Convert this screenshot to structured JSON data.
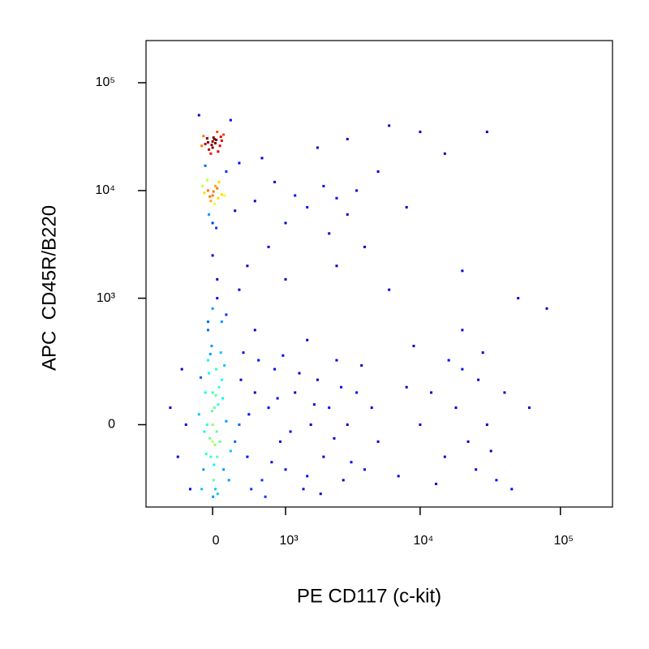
{
  "chart_data": {
    "type": "scatter",
    "xlabel": "PE CD117 (c-kit)",
    "ylabel": "APC  CD45R/B220",
    "xscale": "biexponential",
    "yscale": "biexponential",
    "xlim": [
      -880,
      235000
    ],
    "ylim": [
      -380,
      246000
    ],
    "xticks": [
      0,
      {
        "value": 1000,
        "label": "10³"
      },
      {
        "value": 10000,
        "label": "10⁴"
      },
      {
        "value": 100000,
        "label": "10⁵"
      }
    ],
    "yticks": [
      0,
      {
        "value": 1000,
        "label": "10³"
      },
      {
        "value": 10000,
        "label": "10⁴"
      },
      {
        "value": 100000,
        "label": "10⁵"
      }
    ],
    "colormap": "jet",
    "x": [
      -50,
      20,
      80,
      -100,
      0,
      50,
      -20,
      100,
      -80,
      30,
      10,
      -40,
      60,
      120,
      -120,
      0,
      40,
      -60,
      90,
      -10,
      0,
      -50,
      60,
      30,
      -90,
      100,
      -20,
      20,
      70,
      -60,
      10,
      -30,
      50,
      130,
      -110,
      -150,
      200,
      150,
      -80,
      0,
      40,
      -40,
      250,
      300,
      500,
      800,
      1200,
      1500,
      2000,
      2500,
      3000,
      3500,
      1000,
      700,
      2200,
      4000,
      600,
      1800,
      3000,
      6000,
      10000,
      15000,
      30000,
      8000,
      5000,
      400,
      1000,
      2500,
      6000,
      20000,
      50000,
      80000,
      300,
      150,
      50,
      0,
      -50,
      0,
      20,
      -30,
      50,
      -80,
      100,
      10,
      -100,
      40,
      -50,
      80,
      0,
      -20,
      60,
      -150,
      120,
      30,
      -60,
      90,
      -10,
      150,
      -120,
      200,
      5,
      70,
      -40,
      25,
      -90,
      110,
      -5,
      15,
      45,
      -70,
      130,
      -25,
      180,
      0,
      35,
      -130,
      55,
      300,
      400,
      500,
      600,
      700,
      800,
      900,
      1000,
      1200,
      1400,
      1600,
      1800,
      2000,
      2200,
      2500,
      2800,
      3000,
      3500,
      4000,
      4500,
      5000,
      350,
      450,
      550,
      650,
      750,
      850,
      950,
      1100,
      1300,
      1500,
      1700,
      1900,
      2400,
      2700,
      3200,
      3800,
      250,
      320,
      420,
      10000,
      12000,
      15000,
      18000,
      20000,
      25000,
      28000,
      30000,
      35000,
      40000,
      45000,
      60000,
      22000,
      16000,
      13000,
      26000,
      32000,
      8000,
      7000,
      9000,
      -300,
      -400,
      -350,
      -250,
      -500,
      0,
      -50,
      100,
      50,
      500,
      1500,
      20000
    ],
    "values": [
      28000,
      30000,
      26000,
      32000,
      25000,
      35000,
      22000,
      29000,
      27000,
      27500,
      31000,
      24000,
      23000,
      33000,
      26000,
      28500,
      29500,
      30500,
      31500,
      26500,
      9000,
      10000,
      8500,
      11000,
      9500,
      9200,
      8000,
      7500,
      12000,
      12500,
      9800,
      8800,
      10500,
      9000,
      11000,
      50000,
      45000,
      15000,
      17000,
      5000,
      4500,
      6000,
      6500,
      18000,
      8000,
      12000,
      9000,
      7000,
      11000,
      8500,
      6000,
      10000,
      5000,
      3000,
      4000,
      3000,
      20000,
      25000,
      30000,
      40000,
      35000,
      22000,
      35000,
      7000,
      15000,
      2000,
      1500,
      2000,
      1200,
      1800,
      1000,
      800,
      1200,
      700,
      1500,
      2500,
      600,
      0,
      50,
      -40,
      -100,
      100,
      150,
      -200,
      -150,
      200,
      250,
      -50,
      100,
      -100,
      60,
      30,
      -150,
      -250,
      0,
      300,
      350,
      10,
      -250,
      -80,
      -300,
      120,
      180,
      -60,
      -20,
      80,
      40,
      -130,
      -20,
      -90,
      220,
      290,
      -200,
      -50,
      90,
      160,
      -280,
      0,
      -100,
      100,
      -200,
      50,
      200,
      -50,
      -150,
      100,
      -250,
      0,
      150,
      -100,
      50,
      250,
      -200,
      0,
      100,
      -150,
      50,
      -50,
      300,
      -250,
      250,
      -300,
      -120,
      80,
      280,
      -20,
      180,
      -180,
      60,
      -280,
      -40,
      120,
      -120,
      220,
      -50,
      150,
      30,
      0,
      100,
      -100,
      50,
      200,
      -150,
      300,
      0,
      -200,
      100,
      -250,
      50,
      -50,
      250,
      -220,
      150,
      -80,
      120,
      -180,
      350,
      0,
      -100,
      200,
      -250,
      50,
      800,
      500,
      600,
      1000,
      500,
      400,
      500
    ]
  }
}
